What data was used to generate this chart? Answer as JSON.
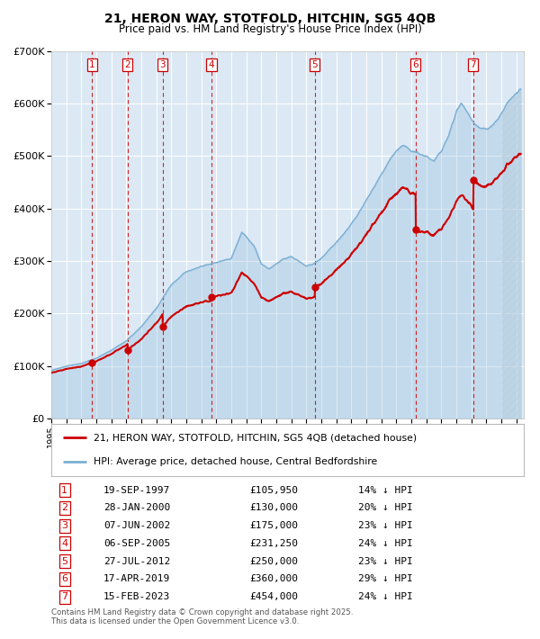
{
  "title_line1": "21, HERON WAY, STOTFOLD, HITCHIN, SG5 4QB",
  "title_line2": "Price paid vs. HM Land Registry's House Price Index (HPI)",
  "ylim": [
    0,
    700000
  ],
  "yticks": [
    0,
    100000,
    200000,
    300000,
    400000,
    500000,
    600000,
    700000
  ],
  "ytick_labels": [
    "£0",
    "£100K",
    "£200K",
    "£300K",
    "£400K",
    "£500K",
    "£600K",
    "£700K"
  ],
  "bg_color": "#dce9f5",
  "grid_color": "#ffffff",
  "red_line_color": "#cc0000",
  "blue_line_color": "#7bafd4",
  "vline_color": "#cc0000",
  "purchases": [
    {
      "num": 1,
      "x_year": 1997.72,
      "price": 105950
    },
    {
      "num": 2,
      "x_year": 2000.08,
      "price": 130000
    },
    {
      "num": 3,
      "x_year": 2002.43,
      "price": 175000
    },
    {
      "num": 4,
      "x_year": 2005.68,
      "price": 231250
    },
    {
      "num": 5,
      "x_year": 2012.57,
      "price": 250000
    },
    {
      "num": 6,
      "x_year": 2019.29,
      "price": 360000
    },
    {
      "num": 7,
      "x_year": 2023.13,
      "price": 454000
    }
  ],
  "table_rows": [
    {
      "num": 1,
      "date_str": "19-SEP-1997",
      "price_str": "£105,950",
      "hpi_str": "14% ↓ HPI"
    },
    {
      "num": 2,
      "date_str": "28-JAN-2000",
      "price_str": "£130,000",
      "hpi_str": "20% ↓ HPI"
    },
    {
      "num": 3,
      "date_str": "07-JUN-2002",
      "price_str": "£175,000",
      "hpi_str": "23% ↓ HPI"
    },
    {
      "num": 4,
      "date_str": "06-SEP-2005",
      "price_str": "£231,250",
      "hpi_str": "24% ↓ HPI"
    },
    {
      "num": 5,
      "date_str": "27-JUL-2012",
      "price_str": "£250,000",
      "hpi_str": "23% ↓ HPI"
    },
    {
      "num": 6,
      "date_str": "17-APR-2019",
      "price_str": "£360,000",
      "hpi_str": "29% ↓ HPI"
    },
    {
      "num": 7,
      "date_str": "15-FEB-2023",
      "price_str": "£454,000",
      "hpi_str": "24% ↓ HPI"
    }
  ],
  "legend_red_label": "21, HERON WAY, STOTFOLD, HITCHIN, SG5 4QB (detached house)",
  "legend_blue_label": "HPI: Average price, detached house, Central Bedfordshire",
  "footnote": "Contains HM Land Registry data © Crown copyright and database right 2025.\nThis data is licensed under the Open Government Licence v3.0.",
  "xmin": 1995.0,
  "xmax": 2026.5,
  "hatch_start": 2025.0
}
